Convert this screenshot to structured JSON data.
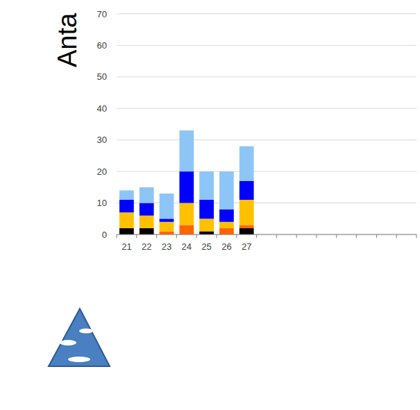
{
  "chart_data": {
    "type": "bar",
    "title": "Anta",
    "categories": [
      "21",
      "22",
      "23",
      "24",
      "25",
      "26",
      "27",
      null,
      null,
      null,
      null,
      null,
      null,
      null,
      null
    ],
    "series": [
      {
        "color": "#000000",
        "values": [
          2,
          2,
          0,
          0,
          1,
          0,
          2,
          null,
          null,
          null,
          null,
          null,
          null,
          null,
          null
        ]
      },
      {
        "color": "#ff6600",
        "values": [
          0,
          0,
          1,
          3,
          0,
          2,
          1,
          null,
          null,
          null,
          null,
          null,
          null,
          null,
          null
        ]
      },
      {
        "color": "#ffc000",
        "values": [
          5,
          4,
          3,
          7,
          4,
          2,
          8,
          null,
          null,
          null,
          null,
          null,
          null,
          null,
          null
        ]
      },
      {
        "color": "#0000ff",
        "values": [
          4,
          4,
          1,
          10,
          6,
          4,
          6,
          null,
          null,
          null,
          null,
          null,
          null,
          null,
          null
        ]
      },
      {
        "color": "#8ec5f7",
        "values": [
          3,
          5,
          8,
          13,
          9,
          12,
          11,
          null,
          null,
          null,
          null,
          null,
          null,
          null,
          null
        ]
      }
    ],
    "ylim": [
      0,
      70
    ],
    "yticks": [
      0,
      10,
      20,
      30,
      40,
      50,
      60,
      70
    ],
    "stacked": true,
    "grid": true
  }
}
